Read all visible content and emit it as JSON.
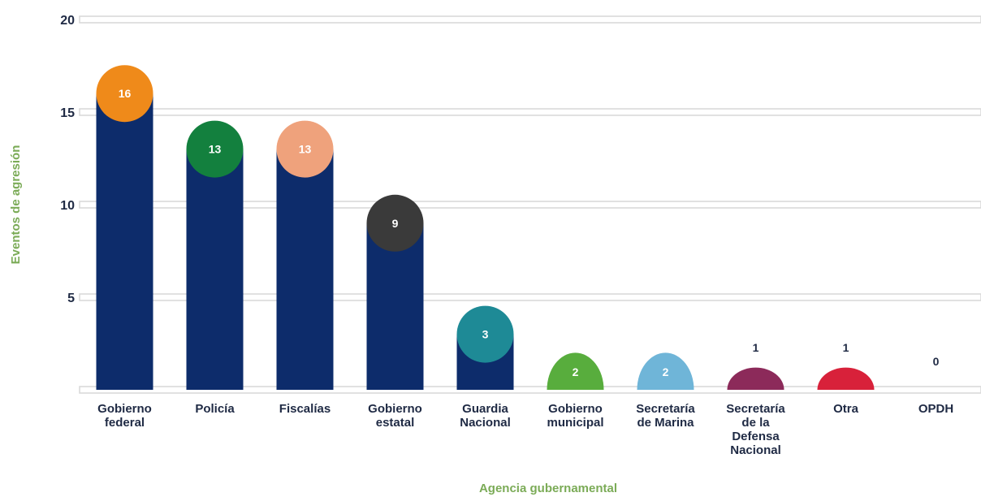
{
  "chart_data": {
    "type": "bar",
    "title": "",
    "xlabel": "Agencia gubernamental",
    "ylabel": "Eventos de agresión",
    "ylim": [
      0,
      20
    ],
    "yticks": [
      "5",
      "10",
      "15",
      "20"
    ],
    "grid": true,
    "categories": [
      [
        "Gobierno",
        "federal"
      ],
      [
        "Policía"
      ],
      [
        "Fiscalías"
      ],
      [
        "Gobierno",
        "estatal"
      ],
      [
        "Guardia",
        "Nacional"
      ],
      [
        "Gobierno",
        "municipal"
      ],
      [
        "Secretaría",
        "de Marina"
      ],
      [
        "Secretaría",
        "de la",
        "Defensa",
        "Nacional"
      ],
      [
        "Otra"
      ],
      [
        "OPDH"
      ]
    ],
    "values": [
      16,
      13,
      13,
      9,
      3,
      2,
      2,
      1,
      1,
      0
    ],
    "value_labels": [
      "16",
      "13",
      "13",
      "9",
      "3",
      "2",
      "2",
      "1",
      "1",
      "0"
    ],
    "bar_color": "#0d2c6b",
    "bubble_colors": [
      "#ef8a1a",
      "#13803e",
      "#efa27c",
      "#3a3a3a",
      "#1e8a96",
      "#58ad3d",
      "#6fb5d8",
      "#8c2a5a",
      "#d8213a",
      "#ffffff"
    ],
    "grid_color": "#d7d7d7",
    "axis_title_color": "#7bab57",
    "text_color": "#1f2a44"
  }
}
